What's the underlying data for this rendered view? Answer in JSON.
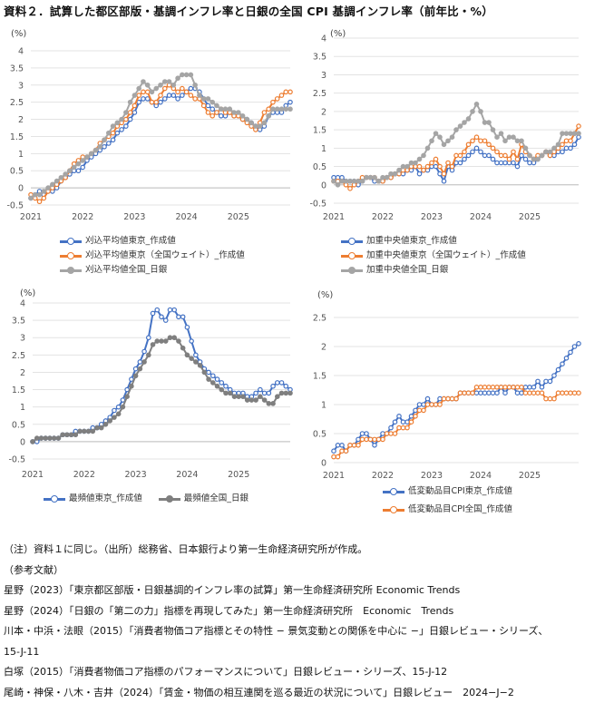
{
  "title": "資料２．試算した都区部版・基調インフレ率と日銀の全国 CPI 基調インフレ率（前年比・%）",
  "unit_label": "(%)",
  "x_ticks": [
    "2021",
    "2022",
    "2023",
    "2024",
    "2025"
  ],
  "colors": {
    "blue": "#4472C4",
    "orange": "#ED7D31",
    "gray": "#A5A5A5",
    "darkgray": "#7F7F7F"
  },
  "chart_data": [
    {
      "type": "line",
      "ylim": [
        -0.5,
        4
      ],
      "yticks": [
        -0.5,
        0,
        0.5,
        1,
        1.5,
        2,
        2.5,
        3,
        3.5,
        4
      ],
      "series": [
        {
          "name": "刈込平均値東京_作成値",
          "color": "#4472C4",
          "marker": "open",
          "values": [
            -0.3,
            -0.2,
            -0.1,
            -0.2,
            -0.1,
            -0.1,
            0,
            0.2,
            0.3,
            0.4,
            0.5,
            0.5,
            0.6,
            0.8,
            0.9,
            1.0,
            1.1,
            1.2,
            1.3,
            1.4,
            1.6,
            1.7,
            1.8,
            2.0,
            2.2,
            2.5,
            2.6,
            2.6,
            2.5,
            2.4,
            2.5,
            2.6,
            2.7,
            2.7,
            2.6,
            2.7,
            2.8,
            2.9,
            2.9,
            2.8,
            2.6,
            2.4,
            2.3,
            2.2,
            2.1,
            2.1,
            2.2,
            2.1,
            2.1,
            2.0,
            2.0,
            1.9,
            1.8,
            1.7,
            1.8,
            2.1,
            2.2,
            2.2,
            2.2,
            2.4,
            2.5
          ]
        },
        {
          "name": "刈込平均値東京（全国ウェイト）_作成値",
          "color": "#ED7D31",
          "marker": "open",
          "values": [
            -0.2,
            -0.3,
            -0.4,
            -0.3,
            -0.1,
            0,
            0.1,
            0.2,
            0.3,
            0.5,
            0.7,
            0.8,
            0.9,
            0.9,
            1.0,
            1.1,
            1.3,
            1.4,
            1.5,
            1.6,
            1.8,
            1.9,
            2.0,
            2.2,
            2.4,
            2.7,
            2.8,
            2.8,
            2.5,
            2.5,
            2.7,
            2.9,
            3.0,
            2.9,
            2.8,
            2.9,
            2.8,
            2.7,
            2.6,
            2.6,
            2.4,
            2.2,
            2.1,
            2.2,
            2.3,
            2.2,
            2.2,
            2.1,
            2.1,
            2.0,
            1.9,
            1.8,
            1.7,
            1.9,
            2.2,
            2.3,
            2.5,
            2.6,
            2.7,
            2.8,
            2.8
          ]
        },
        {
          "name": "刈込平均値全国_日銀",
          "color": "#A5A5A5",
          "marker": "filled",
          "values": [
            -0.3,
            -0.2,
            -0.2,
            -0.1,
            0,
            0.1,
            0.2,
            0.3,
            0.4,
            0.5,
            0.6,
            0.7,
            0.8,
            0.9,
            1.0,
            1.1,
            1.2,
            1.4,
            1.6,
            1.8,
            1.9,
            2.0,
            2.2,
            2.5,
            2.7,
            2.9,
            3.1,
            3.0,
            2.8,
            2.9,
            3.0,
            3.1,
            3.1,
            3.0,
            3.2,
            3.3,
            3.3,
            3.3,
            3.0,
            2.7,
            2.6,
            2.6,
            2.5,
            2.4,
            2.3,
            2.3,
            2.3,
            2.2,
            2.2,
            2.1,
            2.0,
            1.9,
            1.8,
            1.8,
            1.9,
            2.1,
            2.3,
            2.3,
            2.3,
            2.3,
            2.3
          ]
        }
      ]
    },
    {
      "type": "line",
      "ylim": [
        -0.5,
        4
      ],
      "yticks": [
        -0.5,
        0,
        0.5,
        1,
        1.5,
        2,
        2.5,
        3,
        3.5,
        4
      ],
      "series": [
        {
          "name": "加重中央値東京_作成値",
          "color": "#4472C4",
          "marker": "open",
          "values": [
            0.2,
            0.2,
            0.2,
            0.1,
            0.1,
            0.1,
            0.0,
            0.1,
            0.2,
            0.2,
            0.1,
            0.1,
            0.1,
            0.2,
            0.2,
            0.3,
            0.3,
            0.3,
            0.4,
            0.4,
            0.5,
            0.3,
            0.4,
            0.4,
            0.5,
            0.5,
            0.3,
            0.1,
            0.5,
            0.4,
            0.6,
            0.6,
            0.7,
            0.8,
            0.9,
            1.0,
            0.9,
            0.8,
            0.8,
            0.7,
            0.6,
            0.6,
            0.6,
            0.6,
            0.6,
            0.5,
            0.8,
            0.7,
            0.6,
            0.6,
            0.7,
            0.8,
            0.9,
            0.8,
            0.8,
            0.9,
            0.9,
            1.0,
            1.0,
            1.1,
            1.3
          ]
        },
        {
          "name": "加重中央値東京（全国ウェイト）_作成値",
          "color": "#ED7D31",
          "marker": "open",
          "values": [
            0.1,
            0.1,
            0.1,
            0.0,
            -0.1,
            0.0,
            0.1,
            0.2,
            0.2,
            0.2,
            0.2,
            0.1,
            0.1,
            0.2,
            0.2,
            0.3,
            0.3,
            0.4,
            0.4,
            0.5,
            0.5,
            0.5,
            0.4,
            0.5,
            0.6,
            0.7,
            0.5,
            0.3,
            0.6,
            0.5,
            0.8,
            0.8,
            0.9,
            1.1,
            1.2,
            1.3,
            1.2,
            1.2,
            1.1,
            1.0,
            0.9,
            0.8,
            0.8,
            0.7,
            0.9,
            0.7,
            1.1,
            0.9,
            0.8,
            0.7,
            0.8,
            0.8,
            0.9,
            0.8,
            0.9,
            1.0,
            1.1,
            1.2,
            1.2,
            1.4,
            1.6
          ]
        },
        {
          "name": "加重中央値全国_日銀",
          "color": "#A5A5A5",
          "marker": "filled",
          "values": [
            0.1,
            0.0,
            0.1,
            0.1,
            0.1,
            0.1,
            0.1,
            0.1,
            0.2,
            0.2,
            0.2,
            0.1,
            0.2,
            0.2,
            0.3,
            0.3,
            0.4,
            0.5,
            0.5,
            0.6,
            0.6,
            0.7,
            0.8,
            1.0,
            1.2,
            1.4,
            1.3,
            1.1,
            1.2,
            1.3,
            1.5,
            1.6,
            1.7,
            1.8,
            2.0,
            2.2,
            2.0,
            1.7,
            1.7,
            1.5,
            1.3,
            1.4,
            1.2,
            1.3,
            1.3,
            1.2,
            1.2,
            1.0,
            0.8,
            0.7,
            0.7,
            0.8,
            0.9,
            0.9,
            1.0,
            1.1,
            1.4,
            1.4,
            1.4,
            1.4,
            1.4
          ]
        }
      ]
    },
    {
      "type": "line",
      "ylim": [
        -0.5,
        4
      ],
      "yticks": [
        -0.5,
        0,
        0.5,
        1,
        1.5,
        2,
        2.5,
        3,
        3.5,
        4
      ],
      "series": [
        {
          "name": "最頻値東京_作成値",
          "color": "#4472C4",
          "marker": "open",
          "values": [
            0.0,
            0.0,
            0.1,
            0.1,
            0.1,
            0.1,
            0.1,
            0.2,
            0.2,
            0.2,
            0.3,
            0.3,
            0.3,
            0.3,
            0.4,
            0.4,
            0.5,
            0.6,
            0.7,
            0.9,
            1.0,
            1.2,
            1.5,
            1.8,
            2.1,
            2.3,
            2.6,
            3.0,
            3.7,
            3.8,
            3.6,
            3.5,
            3.8,
            3.8,
            3.6,
            3.6,
            3.3,
            2.9,
            2.5,
            2.3,
            2.1,
            2.0,
            1.9,
            1.8,
            1.7,
            1.6,
            1.5,
            1.4,
            1.4,
            1.4,
            1.3,
            1.3,
            1.4,
            1.5,
            1.4,
            1.4,
            1.6,
            1.7,
            1.7,
            1.6,
            1.5
          ]
        },
        {
          "name": "最頻値全国_日銀",
          "color": "#7F7F7F",
          "marker": "filled",
          "values": [
            0.0,
            0.1,
            0.1,
            0.1,
            0.1,
            0.1,
            0.1,
            0.2,
            0.2,
            0.2,
            0.2,
            0.3,
            0.3,
            0.3,
            0.3,
            0.4,
            0.4,
            0.5,
            0.6,
            0.7,
            0.8,
            1.0,
            1.3,
            1.6,
            1.9,
            2.1,
            2.3,
            2.5,
            2.8,
            2.9,
            2.9,
            2.9,
            3.0,
            3.0,
            2.9,
            2.7,
            2.5,
            2.4,
            2.3,
            2.2,
            2.0,
            1.8,
            1.7,
            1.6,
            1.5,
            1.4,
            1.4,
            1.3,
            1.3,
            1.3,
            1.2,
            1.2,
            1.2,
            1.3,
            1.2,
            1.1,
            1.1,
            1.3,
            1.4,
            1.4,
            1.4
          ]
        }
      ]
    },
    {
      "type": "line",
      "ylim": [
        0,
        2.5
      ],
      "yticks": [
        0,
        0.5,
        1,
        1.5,
        2,
        2.5
      ],
      "series": [
        {
          "name": "低変動品目CPI東京_作成値",
          "color": "#4472C4",
          "marker": "open",
          "values": [
            0.2,
            0.3,
            0.3,
            0.2,
            0.3,
            0.3,
            0.4,
            0.5,
            0.5,
            0.4,
            0.3,
            0.4,
            0.5,
            0.5,
            0.6,
            0.7,
            0.8,
            0.7,
            0.7,
            0.8,
            0.9,
            1.0,
            1.0,
            1.1,
            1.0,
            1.0,
            1.1,
            1.1,
            1.1,
            1.1,
            1.1,
            1.2,
            1.2,
            1.2,
            1.2,
            1.2,
            1.2,
            1.2,
            1.2,
            1.2,
            1.2,
            1.3,
            1.2,
            1.3,
            1.3,
            1.2,
            1.2,
            1.3,
            1.3,
            1.3,
            1.4,
            1.3,
            1.4,
            1.4,
            1.5,
            1.6,
            1.7,
            1.8,
            1.9,
            2.0,
            2.05
          ]
        },
        {
          "name": "低変動品目CPI全国_作成値",
          "color": "#ED7D31",
          "marker": "open",
          "values": [
            0.1,
            0.1,
            0.2,
            0.2,
            0.3,
            0.3,
            0.3,
            0.4,
            0.4,
            0.4,
            0.4,
            0.4,
            0.4,
            0.5,
            0.5,
            0.5,
            0.6,
            0.6,
            0.6,
            0.7,
            0.8,
            0.9,
            0.9,
            1.0,
            1.0,
            1.0,
            1.0,
            1.1,
            1.1,
            1.1,
            1.1,
            1.2,
            1.2,
            1.2,
            1.2,
            1.3,
            1.3,
            1.3,
            1.3,
            1.3,
            1.3,
            1.3,
            1.3,
            1.3,
            1.3,
            1.3,
            1.3,
            1.2,
            1.2,
            1.2,
            1.2,
            1.2,
            1.1,
            1.1,
            1.1,
            1.2,
            1.2,
            1.2,
            1.2,
            1.2,
            1.2
          ]
        }
      ]
    }
  ],
  "notes": [
    "（注）資料１に同じ。（出所）総務省、日本銀行より第一生命経済研究所が作成。",
    "（参考文献）",
    "星野（2023）「東京都区部版・日銀基調的インフレ率の試算」第一生命経済研究所 Economic Trends",
    "星野（2024）「日銀の「第二の力」指標を再現してみた」第一生命経済研究所　Economic　Trends",
    "川本・中浜・法眼（2015）「消費者物価コア指標とその特性 − 景気変動との関係を中心に −」日銀レビュー・シリーズ、",
    "15-J-11",
    "白塚（2015）「消費者物価コア指標のパフォーマンスについて」日銀レビュー・シリーズ、15-J-12",
    "尾崎・神保・八木・吉井（2024）「賃金・物価の相互連関を巡る最近の状況について」日銀レビュー　2024−J−2"
  ]
}
